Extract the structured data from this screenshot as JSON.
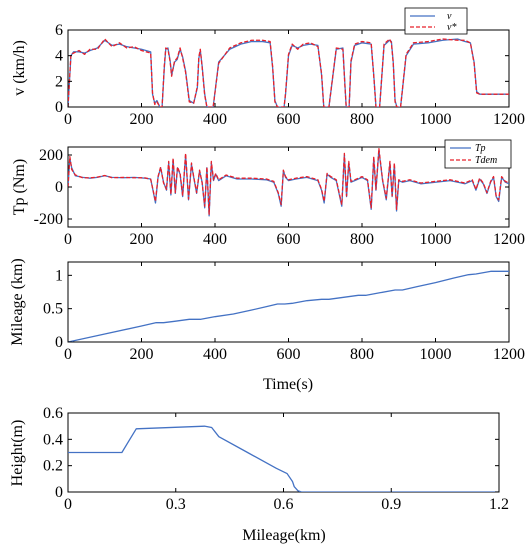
{
  "chart_data": [
    {
      "type": "line",
      "ylabel": "v (km/h)",
      "xlabel": "",
      "xlim": [
        0,
        1200
      ],
      "ylim": [
        0,
        6
      ],
      "xticks": [
        0,
        200,
        400,
        600,
        800,
        1000,
        1200
      ],
      "yticks": [
        0,
        2,
        4,
        6
      ],
      "grid": false,
      "legend_position": "top-right",
      "colors": {
        "series1": "#4472c4",
        "series2": "#e8202a"
      },
      "series": [
        {
          "name": "v",
          "x": [
            0,
            8,
            15,
            30,
            45,
            60,
            80,
            100,
            120,
            140,
            160,
            180,
            200,
            225,
            230,
            236,
            242,
            250,
            256,
            262,
            266,
            272,
            278,
            282,
            290,
            297,
            305,
            312,
            320,
            330,
            342,
            352,
            356,
            360,
            365,
            372,
            378,
            383,
            388,
            395,
            410,
            440,
            470,
            500,
            530,
            550,
            557,
            563,
            570,
            580,
            588,
            592,
            600,
            610,
            625,
            640,
            660,
            680,
            690,
            696,
            700,
            710,
            730,
            748,
            753,
            757,
            760,
            765,
            770,
            780,
            800,
            825,
            832,
            838,
            842,
            848,
            860,
            875,
            880,
            885,
            890,
            895,
            905,
            920,
            940,
            980,
            1020,
            1060,
            1080,
            1095,
            1105,
            1112,
            1120,
            1150,
            1200
          ],
          "y": [
            0,
            4.0,
            4.3,
            4.3,
            4.2,
            4.4,
            4.6,
            5.2,
            4.8,
            4.9,
            4.7,
            4.6,
            4.5,
            4.3,
            1.0,
            0.3,
            0.5,
            0,
            0,
            3.0,
            4.5,
            4.6,
            3.6,
            2.5,
            3.5,
            3.7,
            4.5,
            3.9,
            2.8,
            0.5,
            0.3,
            1.5,
            3.8,
            4.4,
            3.2,
            1.0,
            0,
            0,
            0,
            0,
            3.5,
            4.5,
            4.9,
            5.1,
            5.1,
            5.0,
            3.0,
            0.5,
            0,
            0,
            0,
            1.0,
            4.0,
            4.8,
            4.6,
            4.8,
            4.9,
            4.8,
            2.5,
            0,
            0,
            0,
            4.5,
            4.6,
            2.0,
            0,
            0,
            0,
            3.5,
            4.8,
            5.0,
            4.9,
            2.5,
            0,
            0,
            0,
            4.8,
            5.2,
            5.1,
            3.5,
            0.5,
            0,
            0,
            4.0,
            4.9,
            5.0,
            5.2,
            5.3,
            5.1,
            5.0,
            3.5,
            1.2,
            1.0,
            1.0,
            1.0
          ]
        },
        {
          "name": "v*",
          "x": [
            0,
            8,
            15,
            30,
            45,
            60,
            80,
            100,
            120,
            140,
            160,
            180,
            200,
            225,
            230,
            236,
            242,
            250,
            256,
            262,
            266,
            272,
            278,
            282,
            290,
            297,
            305,
            312,
            320,
            330,
            342,
            352,
            356,
            360,
            365,
            372,
            378,
            383,
            388,
            395,
            410,
            440,
            470,
            500,
            530,
            550,
            557,
            563,
            570,
            580,
            588,
            592,
            600,
            610,
            625,
            640,
            660,
            680,
            690,
            696,
            700,
            710,
            730,
            748,
            753,
            757,
            760,
            765,
            770,
            780,
            800,
            825,
            832,
            838,
            842,
            848,
            860,
            875,
            880,
            885,
            890,
            895,
            905,
            920,
            940,
            980,
            1020,
            1060,
            1080,
            1095,
            1105,
            1112,
            1120,
            1150,
            1200
          ],
          "y": [
            0,
            4.1,
            4.2,
            4.4,
            4.1,
            4.5,
            4.5,
            5.3,
            4.7,
            5.0,
            4.6,
            4.7,
            4.4,
            4.2,
            1.1,
            0.2,
            0.4,
            0,
            0,
            3.2,
            4.6,
            4.5,
            3.5,
            2.4,
            3.6,
            3.8,
            4.6,
            3.8,
            2.7,
            0.4,
            0.3,
            1.6,
            3.9,
            4.5,
            3.1,
            0.9,
            0,
            0,
            0,
            0,
            3.4,
            4.6,
            5.0,
            5.2,
            5.2,
            5.1,
            3.1,
            0.4,
            0,
            0,
            0,
            1.1,
            4.1,
            4.9,
            4.5,
            4.9,
            5.0,
            4.7,
            2.6,
            0,
            0,
            0,
            4.6,
            4.5,
            1.9,
            0,
            0,
            0,
            3.6,
            4.9,
            5.1,
            5.0,
            2.4,
            0,
            0,
            0,
            4.9,
            5.3,
            5.0,
            3.4,
            0.4,
            0,
            0,
            4.1,
            5.0,
            5.1,
            5.3,
            5.2,
            5.2,
            5.0,
            3.4,
            1.1,
            1.0,
            1.0,
            1.0
          ]
        }
      ]
    },
    {
      "type": "line",
      "ylabel": "Tp (Nm)",
      "xlabel": "",
      "xlim": [
        0,
        1200
      ],
      "ylim": [
        -250,
        250
      ],
      "xticks": [
        0,
        200,
        400,
        600,
        800,
        1000,
        1200
      ],
      "yticks": [
        -200,
        0,
        200
      ],
      "grid": false,
      "legend_position": "top-right",
      "colors": {
        "series1": "#4472c4",
        "series2": "#e8202a"
      },
      "series": [
        {
          "name": "Tp",
          "x": [
            0,
            5,
            10,
            20,
            40,
            60,
            80,
            100,
            120,
            150,
            180,
            210,
            225,
            232,
            238,
            245,
            252,
            260,
            268,
            274,
            280,
            286,
            292,
            298,
            305,
            312,
            320,
            328,
            336,
            342,
            350,
            358,
            365,
            372,
            378,
            384,
            390,
            396,
            402,
            410,
            430,
            460,
            500,
            540,
            560,
            572,
            580,
            586,
            592,
            600,
            620,
            650,
            680,
            690,
            697,
            705,
            715,
            730,
            745,
            752,
            758,
            764,
            770,
            780,
            800,
            815,
            825,
            832,
            838,
            846,
            856,
            866,
            876,
            882,
            888,
            894,
            900,
            910,
            930,
            960,
            1000,
            1040,
            1080,
            1100,
            1110,
            1120,
            1130,
            1140,
            1150,
            1158,
            1165,
            1172,
            1180,
            1190,
            1200
          ],
          "y": [
            0,
            180,
            120,
            70,
            60,
            55,
            60,
            70,
            60,
            58,
            60,
            55,
            50,
            -30,
            -100,
            60,
            120,
            30,
            -20,
            150,
            -50,
            170,
            -40,
            120,
            80,
            -60,
            200,
            -80,
            140,
            60,
            -40,
            100,
            30,
            -130,
            120,
            -180,
            150,
            40,
            80,
            40,
            70,
            50,
            50,
            45,
            30,
            -40,
            -120,
            100,
            60,
            40,
            50,
            60,
            40,
            -20,
            -100,
            80,
            60,
            40,
            -120,
            200,
            -60,
            150,
            30,
            40,
            60,
            40,
            -140,
            180,
            -20,
            230,
            40,
            -80,
            150,
            -60,
            140,
            -150,
            40,
            30,
            40,
            20,
            30,
            40,
            20,
            40,
            -20,
            50,
            20,
            -40,
            30,
            60,
            -60,
            -90,
            60,
            30,
            20
          ]
        },
        {
          "name": "Tdem",
          "x": [
            0,
            5,
            10,
            20,
            40,
            60,
            80,
            100,
            120,
            150,
            180,
            210,
            225,
            232,
            238,
            245,
            252,
            260,
            268,
            274,
            280,
            286,
            292,
            298,
            305,
            312,
            320,
            328,
            336,
            342,
            350,
            358,
            365,
            372,
            378,
            384,
            390,
            396,
            402,
            410,
            430,
            460,
            500,
            540,
            560,
            572,
            580,
            586,
            592,
            600,
            620,
            650,
            680,
            690,
            697,
            705,
            715,
            730,
            745,
            752,
            758,
            764,
            770,
            780,
            800,
            815,
            825,
            832,
            838,
            846,
            856,
            866,
            876,
            882,
            888,
            894,
            900,
            910,
            930,
            960,
            1000,
            1040,
            1080,
            1100,
            1110,
            1120,
            1130,
            1140,
            1150,
            1158,
            1165,
            1172,
            1180,
            1190,
            1200
          ],
          "y": [
            0,
            190,
            110,
            75,
            58,
            57,
            62,
            72,
            58,
            60,
            58,
            57,
            48,
            -25,
            -90,
            65,
            125,
            25,
            -15,
            160,
            -45,
            180,
            -35,
            125,
            85,
            -55,
            210,
            -75,
            150,
            65,
            -35,
            105,
            25,
            -120,
            125,
            -170,
            160,
            45,
            85,
            45,
            75,
            55,
            55,
            50,
            35,
            -35,
            -110,
            105,
            65,
            45,
            55,
            65,
            45,
            -15,
            -90,
            85,
            65,
            45,
            -110,
            210,
            -55,
            160,
            35,
            45,
            65,
            45,
            -130,
            190,
            -15,
            240,
            45,
            -70,
            160,
            -55,
            150,
            -140,
            45,
            35,
            45,
            25,
            35,
            45,
            25,
            45,
            -15,
            55,
            25,
            -35,
            35,
            65,
            -55,
            -80,
            65,
            35,
            25
          ]
        }
      ]
    },
    {
      "type": "line",
      "ylabel": "Mileage (km)",
      "xlabel": "Time(s)",
      "xlim": [
        0,
        1200
      ],
      "ylim": [
        0,
        1.2
      ],
      "xticks": [
        0,
        200,
        400,
        600,
        800,
        1000,
        1200
      ],
      "yticks": [
        0,
        0.5,
        1
      ],
      "grid": false,
      "colors": {
        "series1": "#4472c4"
      },
      "series": [
        {
          "x": [
            0,
            100,
            200,
            240,
            260,
            290,
            330,
            360,
            400,
            450,
            500,
            540,
            570,
            590,
            610,
            650,
            690,
            710,
            750,
            790,
            810,
            850,
            890,
            910,
            950,
            1000,
            1050,
            1090,
            1110,
            1150,
            1170,
            1200
          ],
          "y": [
            0,
            0.12,
            0.24,
            0.29,
            0.29,
            0.31,
            0.34,
            0.34,
            0.38,
            0.42,
            0.48,
            0.53,
            0.57,
            0.57,
            0.58,
            0.62,
            0.64,
            0.64,
            0.67,
            0.7,
            0.7,
            0.74,
            0.78,
            0.78,
            0.83,
            0.89,
            0.96,
            1.01,
            1.02,
            1.06,
            1.06,
            1.06
          ]
        }
      ]
    },
    {
      "type": "line",
      "ylabel": "Height(m)",
      "xlabel": "Mileage(km)",
      "xlim": [
        0,
        1.2
      ],
      "ylim": [
        0,
        0.6
      ],
      "xticks": [
        0,
        0.3,
        0.6,
        0.9,
        1.2
      ],
      "yticks": [
        0,
        0.2,
        0.4,
        0.6
      ],
      "grid": false,
      "colors": {
        "series1": "#4472c4"
      },
      "series": [
        {
          "x": [
            0,
            0.15,
            0.19,
            0.38,
            0.4,
            0.42,
            0.5,
            0.58,
            0.61,
            0.625,
            0.63,
            0.64,
            0.65,
            1.2
          ],
          "y": [
            0.3,
            0.3,
            0.48,
            0.5,
            0.49,
            0.42,
            0.3,
            0.18,
            0.14,
            0.08,
            0.04,
            0.01,
            0,
            0
          ]
        }
      ]
    }
  ],
  "panels": [
    {
      "ylabel": "v (km/h)",
      "xlabel": "",
      "legend": [
        {
          "label": "v",
          "style": "solid"
        },
        {
          "label": "v*",
          "style": "dashed"
        }
      ]
    },
    {
      "ylabel": "Tp (Nm)",
      "xlabel": "",
      "legend": [
        {
          "label": "Tp",
          "style": "solid"
        },
        {
          "label": "Tdem",
          "style": "dashed"
        }
      ]
    },
    {
      "ylabel": "Mileage (km)",
      "xlabel": "Time(s)",
      "legend": []
    },
    {
      "ylabel": "Height(m)",
      "xlabel": "Mileage(km)",
      "legend": []
    }
  ]
}
